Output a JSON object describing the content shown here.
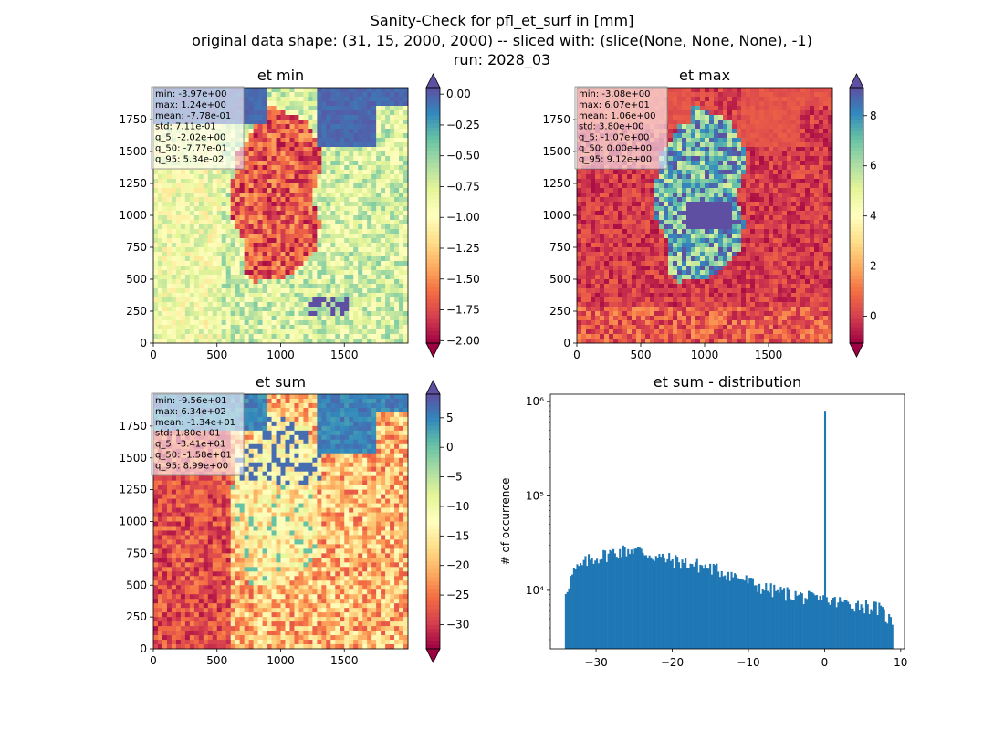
{
  "suptitle": {
    "line1": "Sanity-Check for pfl_et_surf in [mm]",
    "line2": "original data shape: (31, 15, 2000, 2000) -- sliced with: (slice(None, None, None), -1)",
    "line3": "run: 2028_03"
  },
  "chart_data": [
    {
      "type": "heatmap",
      "title": "et min",
      "xticks": [
        "0",
        "500",
        "1000",
        "1500"
      ],
      "yticks": [
        "0",
        "250",
        "500",
        "750",
        "1000",
        "1250",
        "1500",
        "1750"
      ],
      "xlim": [
        0,
        2000
      ],
      "ylim": [
        0,
        2000
      ],
      "colormap": "Spectral",
      "colorbar": {
        "ticks": [
          "0.00",
          "−0.25",
          "−0.50",
          "−0.75",
          "−1.00",
          "−1.25",
          "−1.50",
          "−1.75",
          "−2.00"
        ],
        "vmin": -2.02,
        "vmax": 0.053,
        "extend": "both"
      },
      "stats": [
        "min: -3.97e+00",
        "max: 1.24e+00",
        "mean: -7.78e-01",
        "std: 7.11e-01",
        "q_5: -2.02e+00",
        "q_50: -7.77e-01",
        "q_95: 5.34e-02"
      ]
    },
    {
      "type": "heatmap",
      "title": "et max",
      "xticks": [
        "0",
        "500",
        "1000",
        "1500"
      ],
      "yticks": [
        "0",
        "250",
        "500",
        "750",
        "1000",
        "1250",
        "1500",
        "1750"
      ],
      "xlim": [
        0,
        2000
      ],
      "ylim": [
        0,
        2000
      ],
      "colormap": "Spectral",
      "colorbar": {
        "ticks": [
          "0",
          "2",
          "4",
          "6",
          "8"
        ],
        "vmin": -1.07,
        "vmax": 9.12,
        "extend": "both"
      },
      "stats": [
        "min: -3.08e+00",
        "max: 6.07e+01",
        "mean: 1.06e+00",
        "std: 3.80e+00",
        "q_5: -1.07e+00",
        "q_50: 0.00e+00",
        "q_95: 9.12e+00"
      ]
    },
    {
      "type": "heatmap",
      "title": "et sum",
      "xticks": [
        "0",
        "500",
        "1000",
        "1500"
      ],
      "yticks": [
        "0",
        "250",
        "500",
        "750",
        "1000",
        "1250",
        "1500",
        "1750"
      ],
      "xlim": [
        0,
        2000
      ],
      "ylim": [
        0,
        2000
      ],
      "colormap": "Spectral",
      "colorbar": {
        "ticks": [
          "5",
          "0",
          "−5",
          "−10",
          "−15",
          "−20",
          "−25",
          "−30"
        ],
        "vmin": -34.1,
        "vmax": 8.99,
        "extend": "both"
      },
      "stats": [
        "min: -9.56e+01",
        "max: 6.34e+02",
        "mean: -1.34e+01",
        "std: 1.80e+01",
        "q_5: -3.41e+01",
        "q_50: -1.58e+01",
        "q_95: 8.99e+00"
      ]
    },
    {
      "type": "bar",
      "subtype": "histogram",
      "title": "et sum - distribution",
      "ylabel": "# of occurrence",
      "xlabel": "",
      "yscale": "log",
      "xlim": [
        -36,
        10.5
      ],
      "ylim": [
        2400,
        1200000
      ],
      "xticks": [
        "−30",
        "−20",
        "−10",
        "0",
        "10"
      ],
      "yticks": [
        "10⁴",
        "10⁵",
        "10⁶"
      ],
      "color": "#1f77b4",
      "bin_range": [
        -34.1,
        9.0
      ],
      "bins": 200,
      "profile": [
        [
          -34.1,
          9500
        ],
        [
          -33.0,
          15500
        ],
        [
          -31.0,
          21000
        ],
        [
          -28.0,
          25000
        ],
        [
          -25.0,
          27500
        ],
        [
          -22.0,
          22500
        ],
        [
          -18.0,
          19500
        ],
        [
          -14.0,
          16500
        ],
        [
          -11.0,
          13500
        ],
        [
          -8.0,
          10500
        ],
        [
          -4.0,
          9000
        ],
        [
          -1.0,
          8000
        ],
        [
          2.0,
          7500
        ],
        [
          5.0,
          7000
        ],
        [
          7.0,
          6500
        ],
        [
          9.0,
          4500
        ]
      ],
      "spikes": [
        {
          "x": 0,
          "count": 800000
        }
      ]
    }
  ]
}
